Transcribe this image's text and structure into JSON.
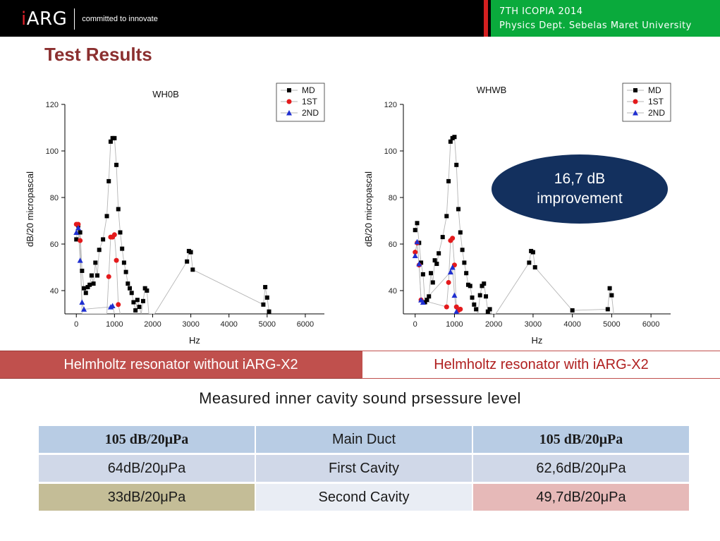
{
  "header": {
    "logo_prefix": "i",
    "logo_main": "ARG",
    "tagline": "committed to innovate",
    "conference_line1": "7TH ICOPIA 2014",
    "conference_line2": "Physics Dept. Sebelas Maret University"
  },
  "slide_title": "Test Results",
  "colors": {
    "md": "#000000",
    "first": "#e41a1c",
    "second": "#1f2fd0",
    "accent_red": "#c0504d",
    "navy": "#13305e",
    "green": "#0aaa3c"
  },
  "chart_data": [
    {
      "type": "scatter",
      "title": "WH0B",
      "xlabel": "Hz",
      "ylabel": "dB/20 micropascal",
      "xlim": [
        -300,
        6500
      ],
      "ylim": [
        30,
        120
      ],
      "xticks": [
        0,
        1000,
        2000,
        3000,
        4000,
        5000,
        6000
      ],
      "yticks": [
        40,
        60,
        80,
        100,
        120
      ],
      "legend_position": "top-right",
      "series": [
        {
          "name": "MD",
          "marker": "square",
          "color": "#000000",
          "x": [
            0,
            50,
            100,
            150,
            200,
            250,
            300,
            350,
            400,
            450,
            500,
            550,
            600,
            700,
            800,
            850,
            900,
            950,
            1000,
            1050,
            1100,
            1150,
            1200,
            1250,
            1300,
            1350,
            1400,
            1450,
            1500,
            1550,
            1600,
            1650,
            1700,
            1750,
            1800,
            1850,
            1900,
            1950,
            2000,
            2050,
            2900,
            2950,
            3000,
            3050,
            4900,
            4950,
            5000,
            5050
          ],
          "y": [
            62,
            68,
            65,
            48.5,
            41,
            39,
            41.5,
            42.5,
            46.5,
            43,
            52,
            46.5,
            57.5,
            62,
            72,
            87,
            104,
            105.5,
            105.5,
            94,
            75,
            65,
            58,
            52,
            48,
            43,
            41,
            39,
            35,
            31.5,
            36,
            33,
            30,
            35.5,
            41,
            40,
            30,
            30,
            30,
            30,
            52.5,
            57,
            56.5,
            49,
            34,
            41.5,
            37,
            31
          ]
        },
        {
          "name": "1ST",
          "marker": "circle",
          "color": "#e41a1c",
          "x": [
            0,
            50,
            100,
            150,
            800,
            850,
            900,
            950,
            1000,
            1050,
            1100,
            1150
          ],
          "y": [
            68.5,
            68.5,
            61.5,
            30,
            30,
            46,
            63,
            63,
            64,
            53,
            34,
            30
          ]
        },
        {
          "name": "2ND",
          "marker": "triangle",
          "color": "#1f2fd0",
          "x": [
            0,
            50,
            100,
            150,
            200,
            900,
            950,
            1000
          ],
          "y": [
            65,
            67,
            53,
            35,
            32,
            33,
            33.5,
            30
          ]
        }
      ]
    },
    {
      "type": "scatter",
      "title": "WHWB",
      "xlabel": "Hz",
      "ylabel": "dB/20 micropascal",
      "xlim": [
        -300,
        6500
      ],
      "ylim": [
        30,
        120
      ],
      "xticks": [
        0,
        1000,
        2000,
        3000,
        4000,
        5000,
        6000
      ],
      "yticks": [
        40,
        60,
        80,
        100,
        120
      ],
      "legend_position": "top-right",
      "series": [
        {
          "name": "MD",
          "marker": "square",
          "color": "#000000",
          "x": [
            0,
            50,
            100,
            150,
            200,
            250,
            300,
            350,
            400,
            450,
            500,
            550,
            600,
            700,
            800,
            850,
            900,
            950,
            1000,
            1050,
            1100,
            1150,
            1200,
            1250,
            1300,
            1350,
            1400,
            1450,
            1500,
            1550,
            1600,
            1650,
            1700,
            1750,
            1800,
            1850,
            1900,
            1950,
            2000,
            2050,
            2900,
            2950,
            3000,
            3050,
            4000,
            4900,
            4950,
            5000,
            5050
          ],
          "y": [
            66,
            69,
            60.5,
            52,
            47,
            35,
            36,
            37.5,
            47.5,
            43.5,
            53,
            51.5,
            56,
            63,
            72,
            87,
            104,
            105.5,
            106,
            94,
            75,
            65,
            57.5,
            52,
            47.5,
            42.5,
            42,
            37,
            34,
            32,
            30,
            38,
            42,
            43,
            37.5,
            31,
            32,
            30,
            30,
            30,
            52,
            57,
            56.5,
            50,
            31.5,
            32,
            41,
            38,
            30
          ]
        },
        {
          "name": "1ST",
          "marker": "circle",
          "color": "#e41a1c",
          "x": [
            0,
            50,
            100,
            150,
            800,
            850,
            900,
            950,
            1000,
            1050,
            1100,
            1150
          ],
          "y": [
            56.5,
            60.5,
            51,
            36,
            33,
            43.5,
            61.5,
            62.5,
            51,
            33,
            31.5,
            32
          ]
        },
        {
          "name": "2ND",
          "marker": "triangle",
          "color": "#1f2fd0",
          "x": [
            0,
            50,
            100,
            150,
            200,
            900,
            950,
            1000,
            1050
          ],
          "y": [
            55,
            61,
            51.5,
            36,
            35,
            48,
            50,
            38,
            31
          ]
        }
      ]
    }
  ],
  "improvement_text": "16,7 dB improvement",
  "label_left": "Helmholtz resonator without iARG-X2",
  "label_right": "Helmholtz resonator with iARG-X2",
  "caption": "Measured inner cavity sound prsessure level",
  "table": {
    "rows": [
      {
        "left": "105 dB/20μPa",
        "middle": "Main Duct",
        "right": "105 dB/20μPa",
        "bold": true,
        "colors": [
          "#b8cce4",
          "#b8cce4",
          "#b8cce4"
        ]
      },
      {
        "left": "64dB/20μPa",
        "middle": "First Cavity",
        "right": "62,6dB/20μPa",
        "bold": false,
        "colors": [
          "#d0d8e8",
          "#d0d8e8",
          "#d0d8e8"
        ]
      },
      {
        "left": "33dB/20μPa",
        "middle": "Second Cavity",
        "right": "49,7dB/20μPa",
        "bold": false,
        "colors": [
          "#c4bd97",
          "#e9edf4",
          "#e6b9b8"
        ]
      }
    ]
  }
}
